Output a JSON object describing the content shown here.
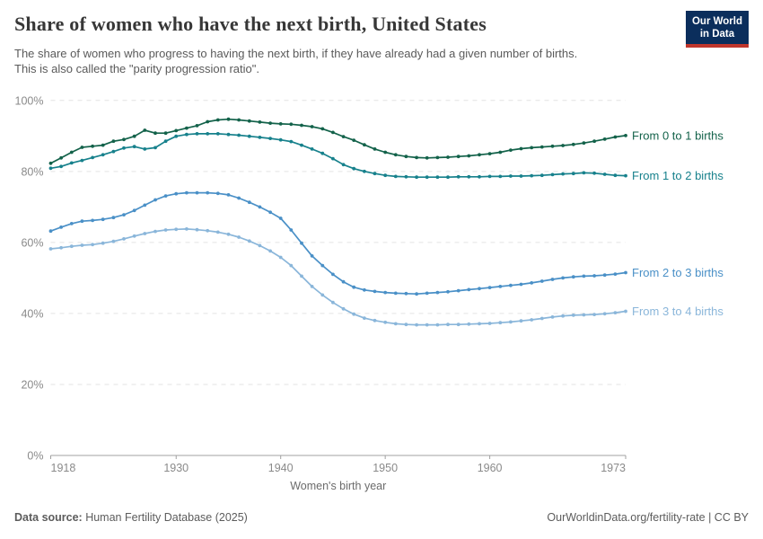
{
  "header": {
    "title": "Share of women who have the next birth, United States",
    "subtitle_line1": "The share of women who progress to having the next birth, if they have already had a given number of births.",
    "subtitle_line2": "This is also called the \"parity progression ratio\".",
    "logo_line1": "Our World",
    "logo_line2": "in Data"
  },
  "footer": {
    "source_label": "Data source:",
    "source_value": " Human Fertility Database (2025)",
    "right_text": "OurWorldinData.org/fertility-rate | CC BY"
  },
  "chart_data": {
    "type": "line",
    "title": "Share of women who have the next birth, United States",
    "xlabel": "Women's birth year",
    "ylabel": "",
    "xlim": [
      1918,
      1973
    ],
    "ylim": [
      0,
      100
    ],
    "x_ticks": [
      1918,
      1930,
      1940,
      1950,
      1960,
      1973
    ],
    "y_ticks": [
      0,
      20,
      40,
      60,
      80,
      100
    ],
    "y_tick_suffix": "%",
    "grid": "horizontal-dashed",
    "legend_position": "right-of-line-ends",
    "marker": "dot",
    "x": [
      1918,
      1919,
      1920,
      1921,
      1922,
      1923,
      1924,
      1925,
      1926,
      1927,
      1928,
      1929,
      1930,
      1931,
      1932,
      1933,
      1934,
      1935,
      1936,
      1937,
      1938,
      1939,
      1940,
      1941,
      1942,
      1943,
      1944,
      1945,
      1946,
      1947,
      1948,
      1949,
      1950,
      1951,
      1952,
      1953,
      1954,
      1955,
      1956,
      1957,
      1958,
      1959,
      1960,
      1961,
      1962,
      1963,
      1964,
      1965,
      1966,
      1967,
      1968,
      1969,
      1970,
      1971,
      1972,
      1973
    ],
    "series": [
      {
        "name": "From 0 to 1 births",
        "color": "#13624a",
        "values": [
          82.3,
          83.8,
          85.4,
          86.8,
          87.1,
          87.4,
          88.5,
          89.0,
          89.9,
          91.6,
          90.8,
          90.8,
          91.5,
          92.2,
          92.9,
          94.0,
          94.5,
          94.7,
          94.5,
          94.2,
          93.9,
          93.6,
          93.4,
          93.3,
          93.0,
          92.6,
          92.0,
          91.0,
          89.8,
          88.8,
          87.5,
          86.3,
          85.4,
          84.7,
          84.2,
          83.9,
          83.8,
          83.9,
          84.0,
          84.2,
          84.4,
          84.7,
          85.0,
          85.4,
          86.0,
          86.4,
          86.7,
          86.9,
          87.1,
          87.3,
          87.6,
          88.0,
          88.5,
          89.1,
          89.7,
          90.1
        ]
      },
      {
        "name": "From 1 to 2 births",
        "color": "#17818c",
        "values": [
          80.9,
          81.4,
          82.4,
          83.1,
          83.9,
          84.7,
          85.6,
          86.6,
          87.0,
          86.3,
          86.7,
          88.5,
          89.9,
          90.4,
          90.6,
          90.6,
          90.6,
          90.4,
          90.2,
          89.9,
          89.6,
          89.3,
          88.9,
          88.4,
          87.4,
          86.3,
          85.1,
          83.6,
          81.9,
          80.8,
          80.0,
          79.4,
          78.9,
          78.6,
          78.5,
          78.4,
          78.4,
          78.4,
          78.4,
          78.5,
          78.5,
          78.5,
          78.6,
          78.6,
          78.7,
          78.7,
          78.8,
          78.9,
          79.1,
          79.3,
          79.4,
          79.6,
          79.5,
          79.2,
          78.9,
          78.8
        ]
      },
      {
        "name": "From 2 to 3 births",
        "color": "#4a90c7",
        "values": [
          63.2,
          64.3,
          65.3,
          66.0,
          66.2,
          66.5,
          67.0,
          67.8,
          69.0,
          70.5,
          72.0,
          73.1,
          73.7,
          74.0,
          74.0,
          74.0,
          73.8,
          73.4,
          72.5,
          71.3,
          70.0,
          68.5,
          66.8,
          63.5,
          59.8,
          56.2,
          53.5,
          51.0,
          48.9,
          47.4,
          46.6,
          46.2,
          45.9,
          45.7,
          45.6,
          45.5,
          45.7,
          45.9,
          46.1,
          46.4,
          46.7,
          47.0,
          47.3,
          47.6,
          47.9,
          48.2,
          48.6,
          49.1,
          49.6,
          50.0,
          50.3,
          50.5,
          50.6,
          50.8,
          51.1,
          51.5
        ]
      },
      {
        "name": "From 3 to 4 births",
        "color": "#8ab6da",
        "values": [
          58.2,
          58.5,
          58.9,
          59.2,
          59.4,
          59.8,
          60.3,
          61.0,
          61.8,
          62.5,
          63.1,
          63.5,
          63.7,
          63.8,
          63.6,
          63.3,
          62.9,
          62.3,
          61.5,
          60.4,
          59.1,
          57.6,
          55.8,
          53.5,
          50.5,
          47.6,
          45.2,
          43.1,
          41.3,
          39.8,
          38.7,
          38.0,
          37.5,
          37.1,
          36.9,
          36.8,
          36.8,
          36.8,
          36.9,
          36.9,
          37.0,
          37.1,
          37.2,
          37.4,
          37.6,
          37.9,
          38.2,
          38.6,
          39.0,
          39.3,
          39.5,
          39.6,
          39.7,
          39.9,
          40.2,
          40.6
        ]
      }
    ]
  }
}
